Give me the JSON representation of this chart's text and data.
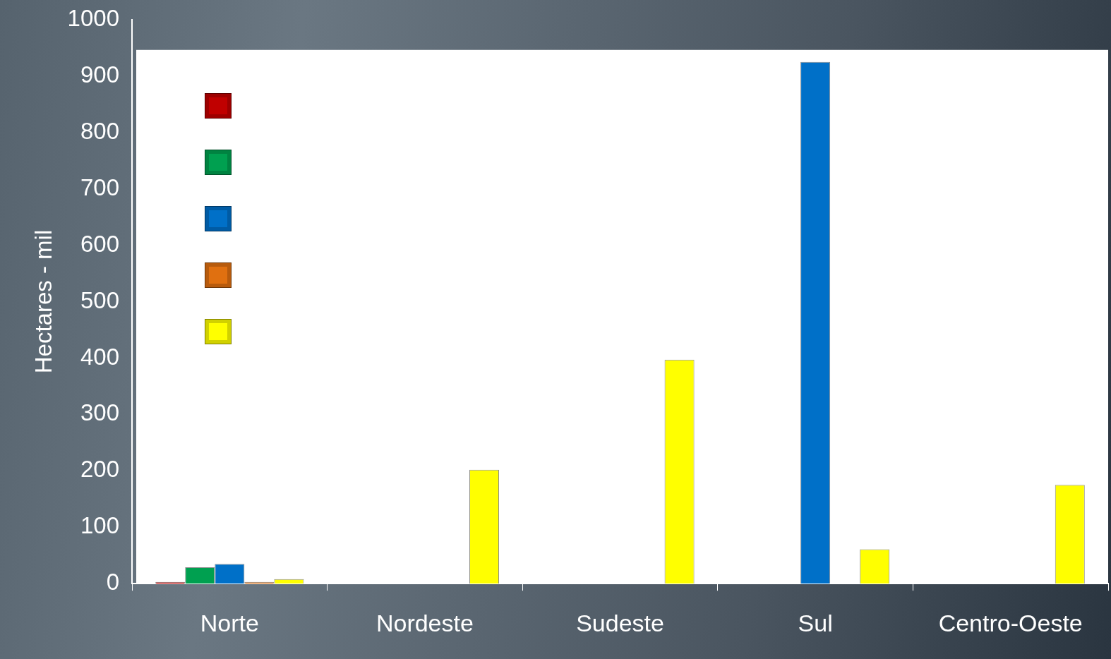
{
  "chart_data": {
    "type": "bar",
    "ylabel": "Hectares - mil",
    "categories": [
      "Norte",
      "Nordeste",
      "Sudeste",
      "Sul",
      "Centro-Oeste"
    ],
    "series": [
      {
        "color": "#c00000",
        "values": [
          3,
          0,
          0,
          0,
          0
        ]
      },
      {
        "color": "#00a050",
        "values": [
          29,
          0,
          0,
          0,
          0
        ]
      },
      {
        "color": "#0070c8",
        "values": [
          35,
          0,
          0,
          925,
          0
        ]
      },
      {
        "color": "#e07010",
        "values": [
          3,
          0,
          0,
          0,
          0
        ]
      },
      {
        "color": "#ffff00",
        "values": [
          8,
          202,
          397,
          61,
          175
        ]
      }
    ],
    "ylim": [
      0,
      1000
    ],
    "yticks": [
      0,
      100,
      200,
      300,
      400,
      500,
      600,
      700,
      800,
      900,
      1000
    ],
    "grid": false
  }
}
